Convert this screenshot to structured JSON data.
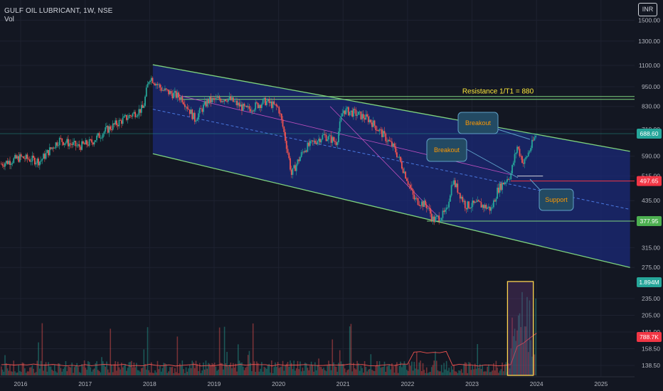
{
  "header": {
    "symbol_line": "GULF OIL LUBRICANT, 1W, NSE",
    "indicator": "Vol",
    "currency_button": "INR"
  },
  "chart_data": {
    "type": "candlestick",
    "symbol": "GULF OIL LUBRICANT",
    "interval": "1W",
    "exchange": "NSE",
    "scale": "log",
    "x_ticks": [
      "2016",
      "2017",
      "2018",
      "2019",
      "2020",
      "2021",
      "2022",
      "2023",
      "2024",
      "2025"
    ],
    "y_ticks": [
      "1500.00",
      "1300.00",
      "1100.00",
      "950.00",
      "830.00",
      "710.00",
      "590.00",
      "515.00",
      "435.00",
      "315.00",
      "275.00",
      "235.00",
      "205.00",
      "181.00",
      "158.50",
      "138.50"
    ],
    "price_labels": [
      {
        "text": "688.60",
        "color": "#26a69a",
        "value": 688.6
      },
      {
        "text": "497.65",
        "color": "#f23645",
        "value": 497.65
      },
      {
        "text": "377.95",
        "color": "#4caf50",
        "value": 377.95
      },
      {
        "text": "1.894M",
        "color": "#26a69a",
        "value": 1894000
      },
      {
        "text": "788.7K",
        "color": "#f23645",
        "value": 788700
      }
    ],
    "price_path": [
      [
        "2015.7",
        560
      ],
      [
        "2016.0",
        585
      ],
      [
        "2016.3",
        570
      ],
      [
        "2016.6",
        660
      ],
      [
        "2016.9",
        630
      ],
      [
        "2017.1",
        650
      ],
      [
        "2017.3",
        700
      ],
      [
        "2017.6",
        760
      ],
      [
        "2017.9",
        820
      ],
      [
        "2018.0",
        1020
      ],
      [
        "2018.2",
        930
      ],
      [
        "2018.5",
        880
      ],
      [
        "2018.7",
        760
      ],
      [
        "2018.9",
        860
      ],
      [
        "2019.2",
        880
      ],
      [
        "2019.5",
        810
      ],
      [
        "2019.8",
        860
      ],
      [
        "2020.0",
        820
      ],
      [
        "2020.2",
        520
      ],
      [
        "2020.4",
        620
      ],
      [
        "2020.7",
        680
      ],
      [
        "2020.9",
        650
      ],
      [
        "2021.0",
        810
      ],
      [
        "2021.2",
        790
      ],
      [
        "2021.4",
        760
      ],
      [
        "2021.6",
        690
      ],
      [
        "2021.8",
        620
      ],
      [
        "2021.9",
        560
      ],
      [
        "2022.1",
        440
      ],
      [
        "2022.3",
        420
      ],
      [
        "2022.4",
        380
      ],
      [
        "2022.6",
        400
      ],
      [
        "2022.7",
        500
      ],
      [
        "2022.9",
        420
      ],
      [
        "2023.1",
        425
      ],
      [
        "2023.3",
        410
      ],
      [
        "2023.4",
        470
      ],
      [
        "2023.6",
        520
      ],
      [
        "2023.7",
        630
      ],
      [
        "2023.8",
        560
      ],
      [
        "2023.9",
        620
      ],
      [
        "2024.0",
        688.6
      ]
    ],
    "annotations": {
      "resistance": {
        "text": "Resistance 1/T1 = 880",
        "value": 880
      },
      "support_line_value": 377.95,
      "pivot_line_value": 497.65,
      "current_line_value": 688.6,
      "callouts": [
        {
          "id": "breakout-upper",
          "text": "Breakout"
        },
        {
          "id": "breakout-lower",
          "text": "Breakout"
        },
        {
          "id": "support",
          "text": "Support"
        }
      ]
    }
  },
  "colors": {
    "background": "#131722",
    "up": "#26a69a",
    "down": "#ef5350",
    "channel_line": "#7ed37e",
    "channel_fill": "#1b2a78",
    "resistance": "#ffeb3b",
    "callout_text": "#ff9800",
    "callout_box": "#234a63",
    "volume_box": "#ffd54f"
  }
}
